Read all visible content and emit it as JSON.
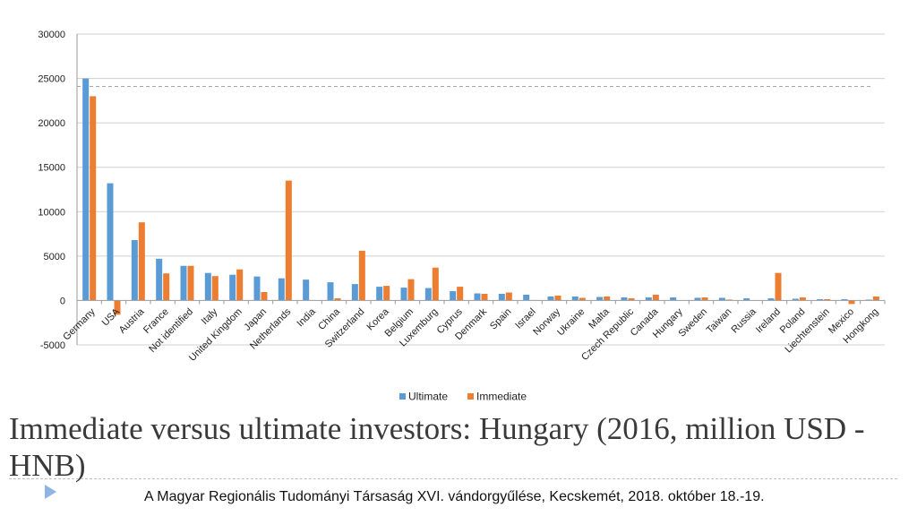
{
  "chart_data": {
    "type": "bar",
    "title": "",
    "xlabel": "",
    "ylabel": "",
    "ylim": [
      -5000,
      30000
    ],
    "yticks": [
      -5000,
      0,
      5000,
      10000,
      15000,
      20000,
      25000,
      30000
    ],
    "reference_line": 24100,
    "categories": [
      "Germany",
      "USA",
      "Austria",
      "France",
      "Not identified",
      "Italy",
      "United Kingdom",
      "Japan",
      "Netherlands",
      "India",
      "China",
      "Switzerland",
      "Korea",
      "Belgium",
      "Luxemburg",
      "Cyprus",
      "Denmark",
      "Spain",
      "Israel",
      "Norway",
      "Ukraine",
      "Malta",
      "Czech Republic",
      "Canada",
      "Hungary",
      "Sweden",
      "Taiwan",
      "Russia",
      "Ireland",
      "Poland",
      "Liechtenstein",
      "Mexico",
      "Hongkong"
    ],
    "series": [
      {
        "name": "Ultimate",
        "color": "#5b9bd5",
        "values": [
          25000,
          13200,
          6800,
          4700,
          3900,
          3100,
          2900,
          2700,
          2500,
          2350,
          2050,
          1850,
          1550,
          1450,
          1400,
          1050,
          800,
          750,
          650,
          450,
          450,
          400,
          350,
          350,
          350,
          300,
          300,
          250,
          250,
          200,
          150,
          150,
          100
        ]
      },
      {
        "name": "Immediate",
        "color": "#ed7d31",
        "values": [
          23000,
          -1600,
          8800,
          3050,
          3900,
          2750,
          3500,
          950,
          13500,
          0,
          250,
          5600,
          1650,
          2400,
          3700,
          1550,
          750,
          900,
          50,
          550,
          300,
          450,
          250,
          650,
          0,
          350,
          100,
          0,
          3100,
          350,
          150,
          -400,
          450
        ]
      }
    ],
    "legend": [
      "Ultimate",
      "Immediate"
    ],
    "legend_position": "bottom"
  },
  "slide": {
    "title": "Immediate versus ultimate investors: Hungary (2016, million USD - HNB)",
    "footer": "A Magyar Regionális Tudományi Társaság XVI. vándorgyűlése, Kecskemét, 2018. október 18.-19."
  },
  "colors": {
    "grid": "#d0d0d0",
    "axis": "#9a9a9a",
    "reference": "#a6a6a6"
  }
}
